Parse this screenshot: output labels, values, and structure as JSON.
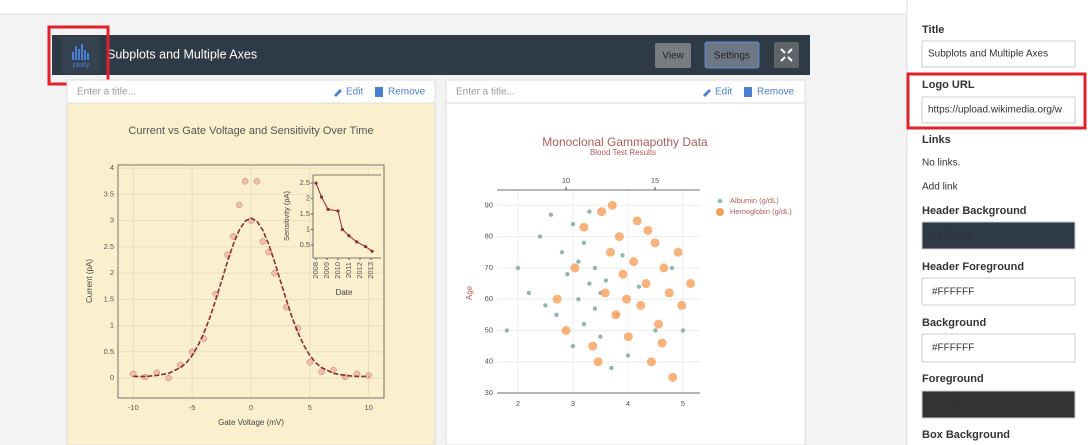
{
  "header": {
    "logo_text": "plotly",
    "title": "Subplots and Multiple Axes",
    "view": "View",
    "settings": "Settings"
  },
  "panels": [
    {
      "placeholder": "Enter a title...",
      "edit": "Edit",
      "remove": "Remove",
      "chart": {
        "type": "scatter",
        "title": "Current vs Gate Voltage and Sensitivity Over Time",
        "xlabel": "Gate Voltage (mV)",
        "ylabel": "Current (pA)",
        "xlim": [
          -11.3,
          11.3
        ],
        "ylim": [
          -0.38,
          4.06
        ],
        "xticks": [
          -10,
          -5,
          0,
          5,
          10
        ],
        "yticks": [
          0,
          0.5,
          1,
          1.5,
          2,
          2.5,
          3,
          3.5,
          4
        ],
        "grid": true,
        "series": [
          {
            "mode": "markers",
            "color": "#e9a99a",
            "x": [
              -10,
              -9,
              -8,
              -7,
              -6,
              -5,
              -4,
              -3,
              -2,
              -1.5,
              -1,
              -0.5,
              0,
              0.5,
              1,
              1.5,
              2,
              3,
              4,
              5,
              6,
              7,
              8,
              9,
              10
            ],
            "y": [
              0.08,
              0.02,
              0.1,
              0,
              0.25,
              0.5,
              0.75,
              1.6,
              2.35,
              2.7,
              3.3,
              3.75,
              3,
              3.75,
              2.6,
              2.4,
              2,
              1.35,
              0.95,
              0.3,
              0.12,
              0.15,
              0.02,
              0.08,
              0.05
            ]
          },
          {
            "mode": "lines",
            "color": "#8b2e2e",
            "x": [
              -10,
              -9,
              -8,
              -7,
              -6,
              -5.5,
              -5,
              -4.5,
              -4,
              -3.5,
              -3,
              -2.5,
              -2,
              -1.5,
              -1,
              -0.5,
              0,
              0.5,
              1,
              1.5,
              2,
              2.5,
              3,
              3.5,
              4,
              4.5,
              5,
              5.5,
              6,
              7,
              8,
              9,
              10
            ],
            "y": [
              0.03,
              0.03,
              0.05,
              0.09,
              0.2,
              0.29,
              0.43,
              0.62,
              0.86,
              1.15,
              1.49,
              1.85,
              2.22,
              2.55,
              2.82,
              2.99,
              3.05,
              2.99,
              2.82,
              2.55,
              2.22,
              1.85,
              1.49,
              1.15,
              0.86,
              0.62,
              0.43,
              0.29,
              0.2,
              0.09,
              0.05,
              0.03,
              0.03
            ]
          }
        ],
        "inset": {
          "type": "line",
          "xlabel": "Date",
          "ylabel": "Sensitivity (pA)",
          "color": "#8b2e2e",
          "xlim": [
            2007.73,
            2013.91
          ],
          "ylim": [
            0.08,
            2.76
          ],
          "xticks": [
            2008,
            2009,
            2010,
            2011,
            2012,
            2013
          ],
          "yticks": [
            0.5,
            1,
            1.5,
            2,
            2.5
          ],
          "x": [
            2008,
            2008.5,
            2009.1,
            2010,
            2010.4,
            2011,
            2011.7,
            2012.5,
            2013.1
          ],
          "y": [
            2.5,
            2.05,
            1.65,
            1.6,
            1,
            0.8,
            0.6,
            0.45,
            0.3
          ]
        }
      }
    },
    {
      "placeholder": "Enter a title...",
      "edit": "Edit",
      "remove": "Remove",
      "chart": {
        "type": "scatter",
        "title": "Monoclonal Gammapothy Data",
        "subtitle": "Blood Test Results",
        "ylabel": "Age",
        "xlim": [
          1.62,
          5.31
        ],
        "xticks": [
          2,
          3,
          4,
          5
        ],
        "x2lim": [
          6.12,
          17.53
        ],
        "x2ticks": [
          10,
          15
        ],
        "ylim": [
          30,
          94.9
        ],
        "yticks": [
          30,
          40,
          50,
          60,
          70,
          80,
          90
        ],
        "grid": true,
        "series": [
          {
            "name": "Albumin (g/dL)",
            "color": "#8fb8b4",
            "axis": "x",
            "x": [
              2.0,
              2.2,
              2.4,
              2.5,
              2.6,
              2.7,
              2.8,
              2.9,
              3.0,
              3.0,
              3.1,
              3.1,
              3.2,
              3.2,
              3.3,
              3.3,
              3.4,
              3.4,
              3.5,
              3.5,
              3.6,
              3.7,
              3.8,
              3.9,
              4.0,
              4.2,
              4.5,
              4.8,
              5.0,
              1.8
            ],
            "y": [
              70,
              62,
              80,
              58,
              87,
              55,
              75,
              68,
              84,
              45,
              72,
              60,
              78,
              52,
              65,
              88,
              57,
              70,
              48,
              62,
              66,
              38,
              55,
              74,
              42,
              64,
              50,
              70,
              50,
              50
            ]
          },
          {
            "name": "Hemoglobin (g/dL)",
            "color": "#f5a05a",
            "axis": "x2",
            "x": [
              9.5,
              10.0,
              10.5,
              11.0,
              11.5,
              12.0,
              12.2,
              12.5,
              12.8,
              13.0,
              13.2,
              13.5,
              13.8,
              14.0,
              14.2,
              14.5,
              14.8,
              15.0,
              15.2,
              15.5,
              15.8,
              16.0,
              16.3,
              16.5,
              17.0,
              11.8,
              12.6,
              13.4,
              14.6,
              15.4
            ],
            "y": [
              60,
              50,
              70,
              83,
              45,
              88,
              62,
              75,
              55,
              80,
              68,
              48,
              72,
              85,
              58,
              65,
              40,
              78,
              52,
              70,
              62,
              35,
              75,
              58,
              65,
              40,
              90,
              60,
              82,
              46
            ]
          }
        ]
      }
    }
  ],
  "sidebar": {
    "title": {
      "label": "Title",
      "value": "Subplots and Multiple Axes"
    },
    "logo_url": {
      "label": "Logo URL",
      "value": "https://upload.wikimedia.org/w"
    },
    "links": {
      "label": "Links",
      "empty": "No links.",
      "add": "Add link"
    },
    "header_background": {
      "label": "Header Background",
      "value": "#2E3A46"
    },
    "header_foreground": {
      "label": "Header Foreground",
      "value": "#FFFFFF"
    },
    "background": {
      "label": "Background",
      "value": "#FFFFFF"
    },
    "foreground": {
      "label": "Foreground",
      "value": "#333333"
    },
    "box_background": {
      "label": "Box Background"
    }
  }
}
